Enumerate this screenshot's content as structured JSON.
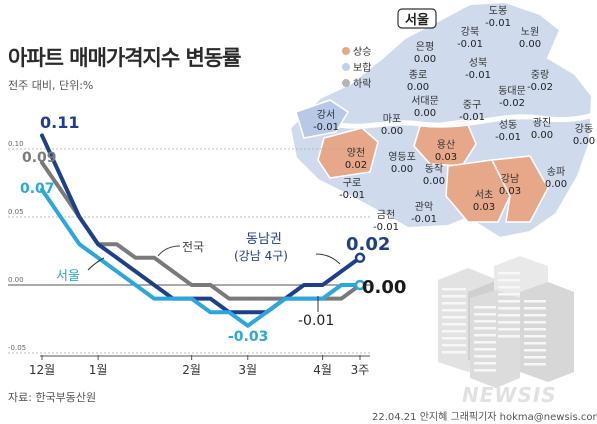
{
  "header": {
    "title": "아파트 매매가격지수 변동률",
    "subtitle": "전주 대비, 단위:%"
  },
  "footer": {
    "source": "자료: 한국부동산원",
    "credit": "22.04.21 안지혜 그래픽기자 hokma@newsis.com",
    "watermark": "NEWSIS"
  },
  "colors": {
    "dongnam": "#1e3f8c",
    "national": "#7a7a7a",
    "seoul": "#2aa7de",
    "rise": "#e7a88a",
    "flat": "#bfd2ec",
    "fall": "#b5b5b5"
  },
  "chart_data": {
    "type": "line",
    "x_ticks": [
      "12월",
      "1월",
      "2월",
      "3월",
      "4월",
      "3주"
    ],
    "y_ticks": [
      "0.10",
      "0.05",
      "0.00",
      "-0.05"
    ],
    "ylim": [
      -0.05,
      0.12
    ],
    "x": [
      0,
      1,
      2,
      3,
      4,
      5,
      6,
      7,
      8,
      9,
      10,
      11,
      12,
      13,
      14,
      15,
      16,
      17
    ],
    "series": [
      {
        "name": "동남권",
        "name_sub": "(강남 4구)",
        "values": [
          0.11,
          0.08,
          0.05,
          0.03,
          0.02,
          0.01,
          0.0,
          -0.01,
          -0.01,
          -0.01,
          -0.02,
          -0.02,
          -0.02,
          -0.01,
          0.0,
          0.0,
          0.01,
          0.02
        ],
        "end_label": "0.02",
        "start_label": "0.11"
      },
      {
        "name": "전국",
        "values": [
          0.09,
          0.07,
          0.05,
          0.03,
          0.03,
          0.02,
          0.02,
          0.01,
          0.0,
          0.0,
          -0.01,
          -0.01,
          -0.01,
          -0.01,
          -0.01,
          -0.01,
          -0.01,
          0.0
        ],
        "start_label": "0.09"
      },
      {
        "name": "서울",
        "values": [
          0.07,
          0.05,
          0.03,
          0.02,
          0.01,
          0.0,
          -0.01,
          -0.01,
          -0.01,
          -0.02,
          -0.02,
          -0.03,
          -0.02,
          -0.01,
          -0.01,
          -0.01,
          0.0,
          0.0
        ],
        "end_label": "0.00",
        "start_label": "0.07"
      }
    ],
    "annotations": [
      {
        "text": "-0.03",
        "series": "서울"
      },
      {
        "text": "-0.01",
        "series": "동남권"
      }
    ]
  },
  "map": {
    "title": "서울",
    "legend": [
      {
        "label": "상승",
        "color_key": "rise"
      },
      {
        "label": "보합",
        "color_key": "flat"
      },
      {
        "label": "하락",
        "color_key": "fall"
      }
    ],
    "districts": [
      {
        "name": "도봉",
        "value": "-0.01"
      },
      {
        "name": "강북",
        "value": "-0.01"
      },
      {
        "name": "노원",
        "value": "0.00"
      },
      {
        "name": "은평",
        "value": "0.00"
      },
      {
        "name": "성북",
        "value": "-0.01"
      },
      {
        "name": "중랑",
        "value": "-0.02"
      },
      {
        "name": "종로",
        "value": "0.00"
      },
      {
        "name": "동대문",
        "value": "-0.02"
      },
      {
        "name": "서대문",
        "value": "0.00"
      },
      {
        "name": "중구",
        "value": "-0.01"
      },
      {
        "name": "강서",
        "value": "-0.01"
      },
      {
        "name": "마포",
        "value": "0.00"
      },
      {
        "name": "성동",
        "value": "-0.01"
      },
      {
        "name": "광진",
        "value": "0.00"
      },
      {
        "name": "강동",
        "value": "0.00"
      },
      {
        "name": "양천",
        "value": "0.02"
      },
      {
        "name": "영등포",
        "value": "0.00"
      },
      {
        "name": "용산",
        "value": "0.03"
      },
      {
        "name": "동작",
        "value": "0.00"
      },
      {
        "name": "구로",
        "value": "-0.01"
      },
      {
        "name": "강남",
        "value": "0.03"
      },
      {
        "name": "송파",
        "value": "0.00"
      },
      {
        "name": "서초",
        "value": "0.03"
      },
      {
        "name": "관악",
        "value": "-0.01"
      },
      {
        "name": "금천",
        "value": "-0.01"
      }
    ]
  }
}
